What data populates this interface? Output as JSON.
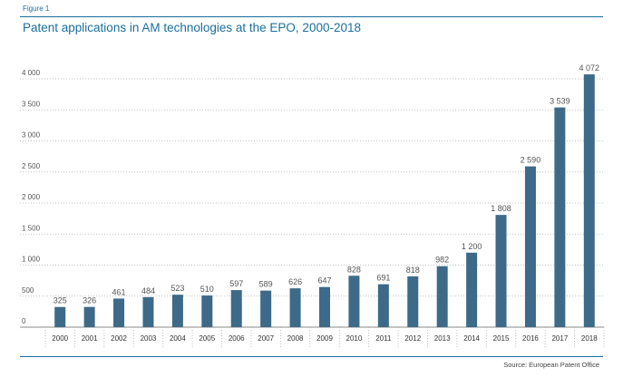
{
  "figure_label": "Figure 1",
  "title": "Patent applications in AM technologies at the EPO, 2000-2018",
  "source": "Source: European Patent Office",
  "colors": {
    "accent": "#1a6f9c",
    "bar": "#3d6a88",
    "grid": "#b0b0b0",
    "text": "#555555"
  },
  "chart_data": {
    "type": "bar",
    "title": "Patent applications in AM technologies at the EPO, 2000-2018",
    "xlabel": "",
    "ylabel": "",
    "ylim": [
      0,
      4300
    ],
    "yticks": [
      0,
      500,
      1000,
      1500,
      2000,
      2500,
      3000,
      3500,
      4000
    ],
    "ytick_labels": [
      "0",
      "500",
      "1 000",
      "1 500",
      "2 000",
      "2 500",
      "3 000",
      "3 500",
      "4 000"
    ],
    "grid": "horizontal dotted",
    "legend": "none",
    "categories": [
      "2000",
      "2001",
      "2002",
      "2003",
      "2004",
      "2005",
      "2006",
      "2007",
      "2008",
      "2009",
      "2010",
      "2011",
      "2012",
      "2013",
      "2014",
      "2015",
      "2016",
      "2017",
      "2018"
    ],
    "series": [
      {
        "values": [
          325,
          326,
          461,
          484,
          523,
          510,
          597,
          589,
          626,
          647,
          828,
          691,
          818,
          982,
          1200,
          1808,
          2590,
          3539,
          4072
        ],
        "labels": [
          "325",
          "326",
          "461",
          "484",
          "523",
          "510",
          "597",
          "589",
          "626",
          "647",
          "828",
          "691",
          "818",
          "982",
          "1 200",
          "1 808",
          "2 590",
          "3 539",
          "4 072"
        ]
      }
    ]
  }
}
